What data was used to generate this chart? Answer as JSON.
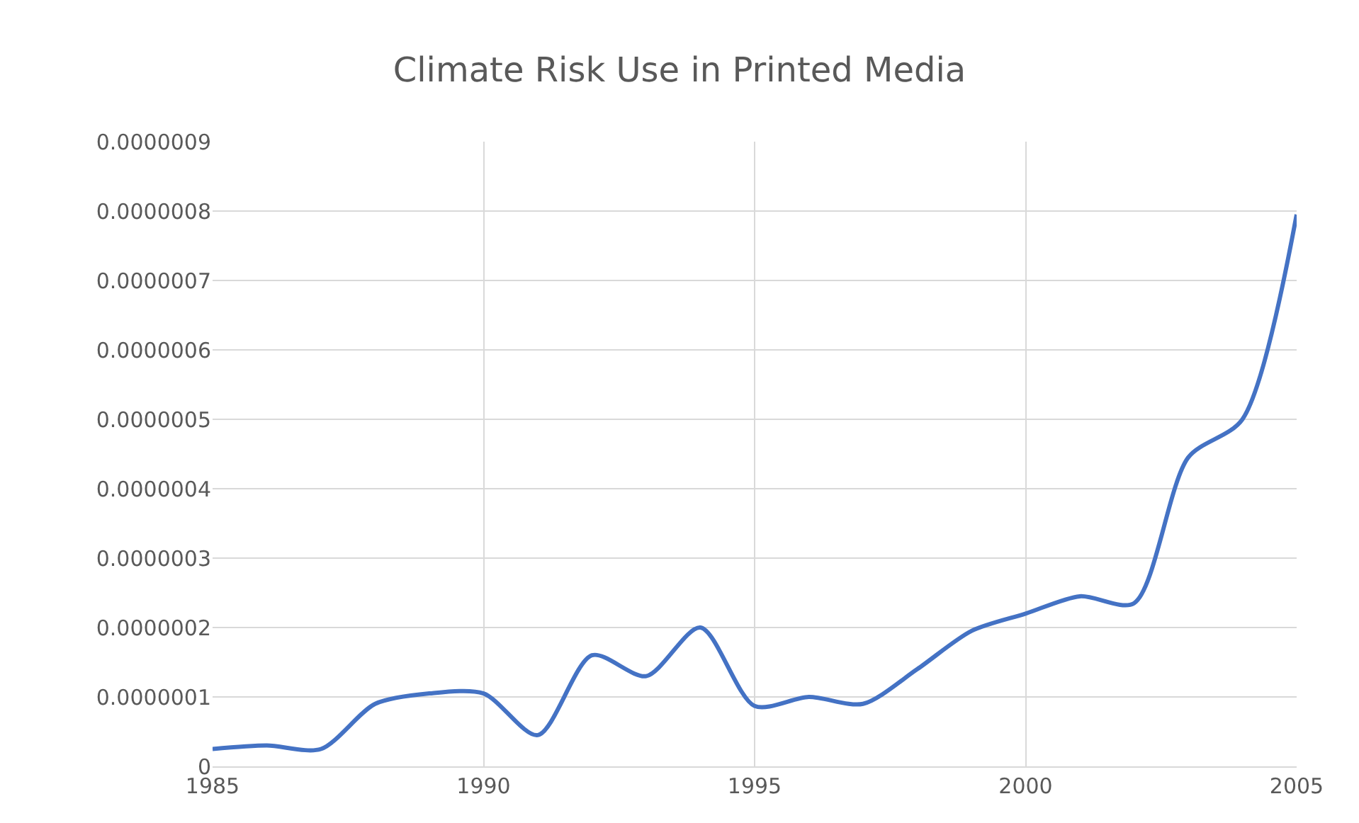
{
  "chart_data": {
    "type": "line",
    "title": "Climate Risk Use in Printed Media",
    "x": [
      1985,
      1986,
      1987,
      1988,
      1989,
      1990,
      1991,
      1992,
      1993,
      1994,
      1995,
      1996,
      1997,
      1998,
      1999,
      2000,
      2001,
      2002,
      2003,
      2004,
      2005
    ],
    "series": [
      {
        "color": "#4472c4",
        "values": [
          2.5e-08,
          3e-08,
          2.5e-08,
          9e-08,
          1.05e-07,
          1.05e-07,
          4.5e-08,
          1.6e-07,
          1.3e-07,
          2e-07,
          8.7e-08,
          1e-07,
          9e-08,
          1.4e-07,
          1.95e-07,
          2.2e-07,
          2.45e-07,
          2.35e-07,
          4.45e-07,
          5e-07,
          7.95e-07
        ]
      }
    ],
    "xlim": [
      1985,
      2005
    ],
    "xticks": [
      1985,
      1990,
      1995,
      2000,
      2005
    ],
    "ylim": [
      0,
      9e-07
    ],
    "yticks": [
      0,
      {
        "value": 1e-07,
        "label": "0.0000001"
      },
      {
        "value": 2e-07,
        "label": "0.0000002"
      },
      {
        "value": 3e-07,
        "label": "0.0000003"
      },
      {
        "value": 4e-07,
        "label": "0.0000004"
      },
      {
        "value": 5e-07,
        "label": "0.0000005"
      },
      {
        "value": 6e-07,
        "label": "0.0000006"
      },
      {
        "value": 7e-07,
        "label": "0.0000007"
      },
      {
        "value": 8e-07,
        "label": "0.0000008"
      },
      {
        "value": 9e-07,
        "label": "0.0000009"
      }
    ],
    "grid": true,
    "marker": "none",
    "line_style": "solid"
  }
}
